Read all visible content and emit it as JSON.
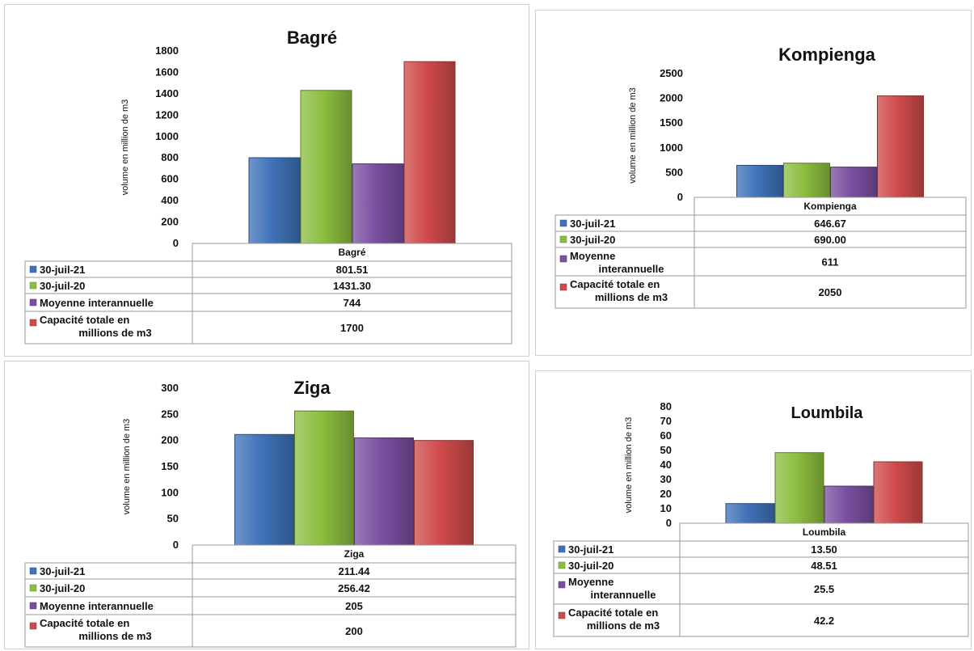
{
  "chart_data": [
    {
      "type": "bar",
      "title": "Bagré",
      "ylabel": "volume en million de m3",
      "categories": [
        "Bagré"
      ],
      "yticks": [
        "1800",
        "1600",
        "1400",
        "1200",
        "1000",
        "800",
        "600",
        "400",
        "200",
        "0"
      ],
      "ylim": [
        0,
        1800
      ],
      "series": [
        {
          "name": "30-juil-21",
          "values": [
            801.51
          ],
          "label": "801.51",
          "color": "#3f72b8"
        },
        {
          "name": "30-juil-20",
          "values": [
            1431.3
          ],
          "label": "1431.30",
          "color": "#8cbd3f"
        },
        {
          "name": "Moyenne interannuelle",
          "values": [
            744
          ],
          "label": "744",
          "color": "#7a4fa0"
        },
        {
          "name": "Capacité totale en millions de m3",
          "values": [
            1700
          ],
          "label": "1700",
          "color": "#cf4a4a"
        }
      ]
    },
    {
      "type": "bar",
      "title": "Kompienga",
      "ylabel": "volume en million de m3",
      "categories": [
        "Kompienga"
      ],
      "yticks": [
        "2500",
        "2000",
        "1500",
        "1000",
        "500",
        "0"
      ],
      "ylim": [
        0,
        2500
      ],
      "series": [
        {
          "name": "30-juil-21",
          "values": [
            646.67
          ],
          "label": "646.67",
          "color": "#3f72b8"
        },
        {
          "name": "30-juil-20",
          "values": [
            690.0
          ],
          "label": "690.00",
          "color": "#8cbd3f"
        },
        {
          "name": "Moyenne interannuelle",
          "values": [
            611
          ],
          "label": "611",
          "color": "#7a4fa0"
        },
        {
          "name": "Capacité totale en millions de m3",
          "values": [
            2050
          ],
          "label": "2050",
          "color": "#cf4a4a"
        }
      ]
    },
    {
      "type": "bar",
      "title": "Ziga",
      "ylabel": "volume en million de m3",
      "categories": [
        "Ziga"
      ],
      "yticks": [
        "300",
        "250",
        "200",
        "150",
        "100",
        "50",
        "0"
      ],
      "ylim": [
        0,
        300
      ],
      "series": [
        {
          "name": "30-juil-21",
          "values": [
            211.44
          ],
          "label": "211.44",
          "color": "#3f72b8"
        },
        {
          "name": "30-juil-20",
          "values": [
            256.42
          ],
          "label": "256.42",
          "color": "#8cbd3f"
        },
        {
          "name": "Moyenne interannuelle",
          "values": [
            205
          ],
          "label": "205",
          "color": "#7a4fa0"
        },
        {
          "name": "Capacité totale en millions de m3",
          "values": [
            200
          ],
          "label": "200",
          "color": "#cf4a4a"
        }
      ]
    },
    {
      "type": "bar",
      "title": "Loumbila",
      "ylabel": "volume en million de m3",
      "categories": [
        "Loumbila"
      ],
      "yticks": [
        "80",
        "70",
        "60",
        "50",
        "40",
        "30",
        "20",
        "10",
        "0"
      ],
      "ylim": [
        0,
        80
      ],
      "series": [
        {
          "name": "30-juil-21",
          "values": [
            13.5
          ],
          "label": "13.50",
          "color": "#3f72b8"
        },
        {
          "name": "30-juil-20",
          "values": [
            48.51
          ],
          "label": "48.51",
          "color": "#8cbd3f"
        },
        {
          "name": "Moyenne interannuelle",
          "values": [
            25.5
          ],
          "label": "25.5",
          "color": "#7a4fa0"
        },
        {
          "name": "Capacité totale en millions de m3",
          "values": [
            42.2
          ],
          "label": "42.2",
          "color": "#cf4a4a"
        }
      ]
    }
  ]
}
